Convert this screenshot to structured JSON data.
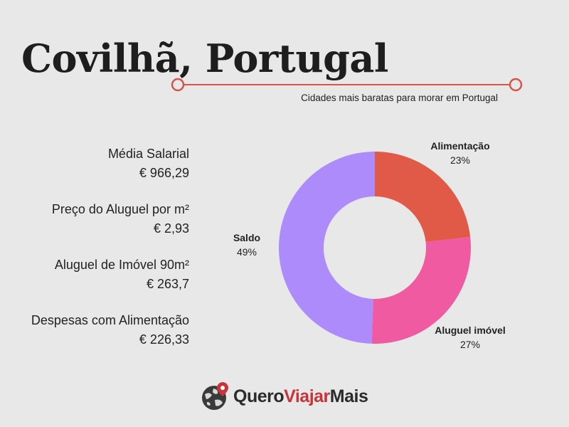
{
  "title": "Covilhã, Portugal",
  "subtitle": "Cidades mais baratas para morar em Portugal",
  "stats": [
    {
      "label": "Média Salarial",
      "value": "€ 966,29"
    },
    {
      "label": "Preço do Aluguel por m²",
      "value": "€ 2,93"
    },
    {
      "label": "Aluguel de Imóvel 90m²",
      "value": "€ 263,7"
    },
    {
      "label": "Despesas com Alimentação",
      "value": "€ 226,33"
    }
  ],
  "chart_data": {
    "type": "pie",
    "labels": [
      "Alimentação",
      "Aluguel imóvel",
      "Saldo"
    ],
    "values": [
      23,
      27,
      49
    ],
    "value_labels": [
      "23%",
      "27%",
      "49%"
    ],
    "colors": [
      "#e05a47",
      "#ef5aa1",
      "#ae8bfa"
    ],
    "donut": true,
    "legend": "none",
    "data_labels": "outside"
  },
  "logo": {
    "part1": "Quero",
    "part2": "Viajar",
    "part3": "Mais"
  },
  "colors": {
    "accent_line": "#d6544a",
    "background": "#e9e8e8"
  }
}
